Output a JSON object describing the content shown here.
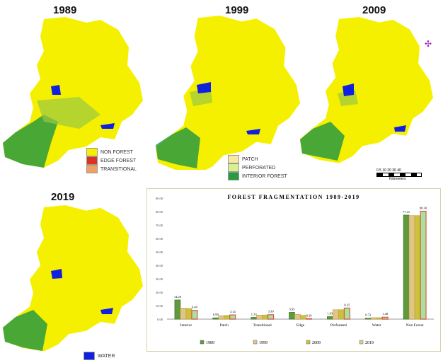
{
  "years": {
    "y1989": "1989",
    "y1999": "1999",
    "y2009": "2009",
    "y2019": "2019"
  },
  "legend": {
    "non_forest": "NON FOREST",
    "edge_forest": "EDGE FOREST",
    "transitional": "TRANSITIONAL",
    "patch": "PATCH",
    "perforated": "PERFORATED",
    "interior_forest": "INTERIOR FOREST",
    "water": "WATER"
  },
  "scale_bar": {
    "ticks": "0 5 10  20  30  40",
    "unit": "Kilometers"
  },
  "colors": {
    "non_forest": "#f5f000",
    "edge": "#e03020",
    "transitional": "#f0a060",
    "patch": "#f8e8a0",
    "perforated": "#d8f090",
    "interior": "#2a9a40",
    "water": "#1020e0"
  },
  "chart_data": {
    "type": "bar",
    "title": "FOREST FRAGMENTATION 1989-2019",
    "categories": [
      "Interior",
      "Patch",
      "Transitional",
      "Edge",
      "Perforated",
      "Water",
      "Non Forest"
    ],
    "series": [
      {
        "name": "1989",
        "values": [
          14.29,
          0.99,
          1.33,
          5.05,
          1.93,
          0.73,
          77.41
        ],
        "color": "#5f9a3c"
      },
      {
        "name": "1999",
        "values": [
          8.2,
          2.6,
          3.0,
          3.5,
          7.0,
          1.1,
          77.0
        ],
        "color": "#e2c488"
      },
      {
        "name": "2009",
        "values": [
          8.0,
          2.8,
          3.1,
          2.8,
          7.0,
          1.1,
          77.0
        ],
        "color": "#c9c23a"
      },
      {
        "name": "2019",
        "values": [
          6.49,
          3.14,
          3.3,
          0.39,
          8.25,
          1.48,
          80.3
        ],
        "color": "#a8e0a0"
      }
    ],
    "data_labels": [
      "14.29",
      "6.49",
      "0.99",
      "3.14",
      "1.33",
      "3.30",
      "5.05",
      "0.39",
      "1.93",
      "8.25",
      "0.73",
      "1.48",
      "77.41",
      "80.30"
    ],
    "yticks": [
      "0.00",
      "10.00",
      "20.00",
      "30.00",
      "40.00",
      "50.00",
      "60.00",
      "70.00",
      "80.00",
      "90.00"
    ],
    "ylim": [
      0,
      90
    ],
    "legend_position": "bottom"
  }
}
